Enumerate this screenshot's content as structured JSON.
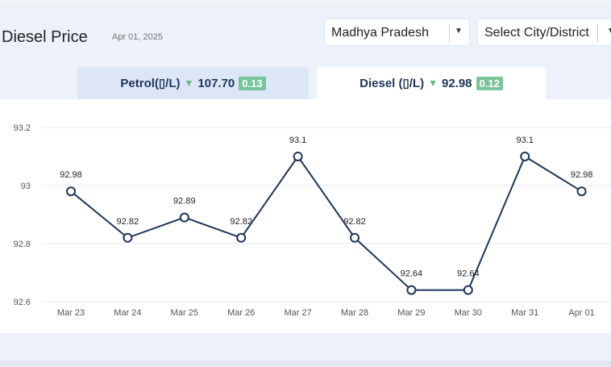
{
  "header": {
    "title": "Diesel Price",
    "date": "Apr 01, 2025",
    "state_select": "Madhya Pradesh",
    "city_select": "Select City/District"
  },
  "tabs": [
    {
      "fuel": "Petrol(▯/L)",
      "price": "107.70",
      "change": "0.13"
    },
    {
      "fuel": "Diesel (▯/L)",
      "price": "92.98",
      "change": "0.12"
    }
  ],
  "colors": {
    "line": "#1d3557",
    "change_badge": "#7ac49b",
    "down_arrow": "#66b58a",
    "active_tab": "#ffffff",
    "inactive_tab": "#dde6f6"
  },
  "icons": {
    "down_arrow": "triangle-down-icon",
    "dropdown": "caret-down-icon"
  },
  "chart_data": {
    "type": "line",
    "categories": [
      "Mar 23",
      "Mar 24",
      "Mar 25",
      "Mar 26",
      "Mar 27",
      "Mar 28",
      "Mar 29",
      "Mar 30",
      "Mar 31",
      "Apr 01"
    ],
    "values": [
      92.98,
      92.82,
      92.89,
      92.82,
      93.1,
      92.82,
      92.64,
      92.64,
      93.1,
      92.98
    ],
    "data_labels": [
      "92.98",
      "92.82",
      "92.89",
      "92.82",
      "93.1",
      "92.82",
      "92.64",
      "92.64",
      "93.1",
      "92.98"
    ],
    "ylim": [
      92.6,
      93.2
    ],
    "yticks": [
      "92.6",
      "92.8",
      "93",
      "93.2"
    ],
    "grid": true,
    "legend": "none"
  }
}
